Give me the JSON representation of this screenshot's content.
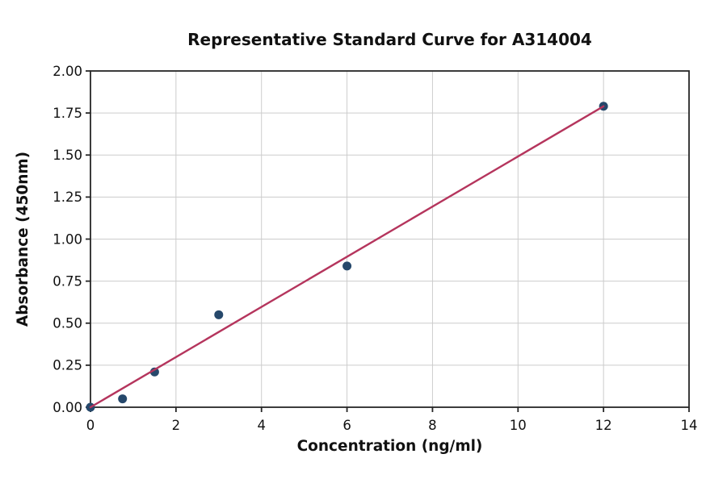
{
  "figure": {
    "background": "#ffffff"
  },
  "colors": {
    "point": "#26486b",
    "fit_line": "#b5355d",
    "grid": "#cccccc",
    "spine": "#262626",
    "text": "#111111"
  },
  "chart_data": {
    "type": "scatter",
    "title": "Representative Standard Curve for A314004",
    "xlabel": "Concentration (ng/ml)",
    "ylabel": "Absorbance (450nm)",
    "xlim": [
      0,
      14
    ],
    "ylim": [
      0,
      2.0
    ],
    "x_tick_values": [
      0,
      2,
      4,
      6,
      8,
      10,
      12,
      14
    ],
    "x_tick_labels": [
      "0",
      "2",
      "4",
      "6",
      "8",
      "10",
      "12",
      "14"
    ],
    "y_tick_values": [
      0,
      0.25,
      0.5,
      0.75,
      1.0,
      1.25,
      1.5,
      1.75,
      2.0
    ],
    "y_tick_labels": [
      "0.00",
      "0.25",
      "0.50",
      "0.75",
      "1.00",
      "1.25",
      "1.50",
      "1.75",
      "2.00"
    ],
    "grid": true,
    "legend": false,
    "series": [
      {
        "name": "standard-points",
        "type": "scatter",
        "marker": "circle",
        "color": "#26486b",
        "x": [
          0,
          0.75,
          1.5,
          3,
          6,
          12
        ],
        "y": [
          0.0,
          0.05,
          0.21,
          0.55,
          0.84,
          1.79
        ]
      },
      {
        "name": "fit-line",
        "type": "line",
        "color": "#b5355d",
        "x": [
          0,
          12
        ],
        "y": [
          0.0,
          1.79
        ]
      }
    ]
  }
}
